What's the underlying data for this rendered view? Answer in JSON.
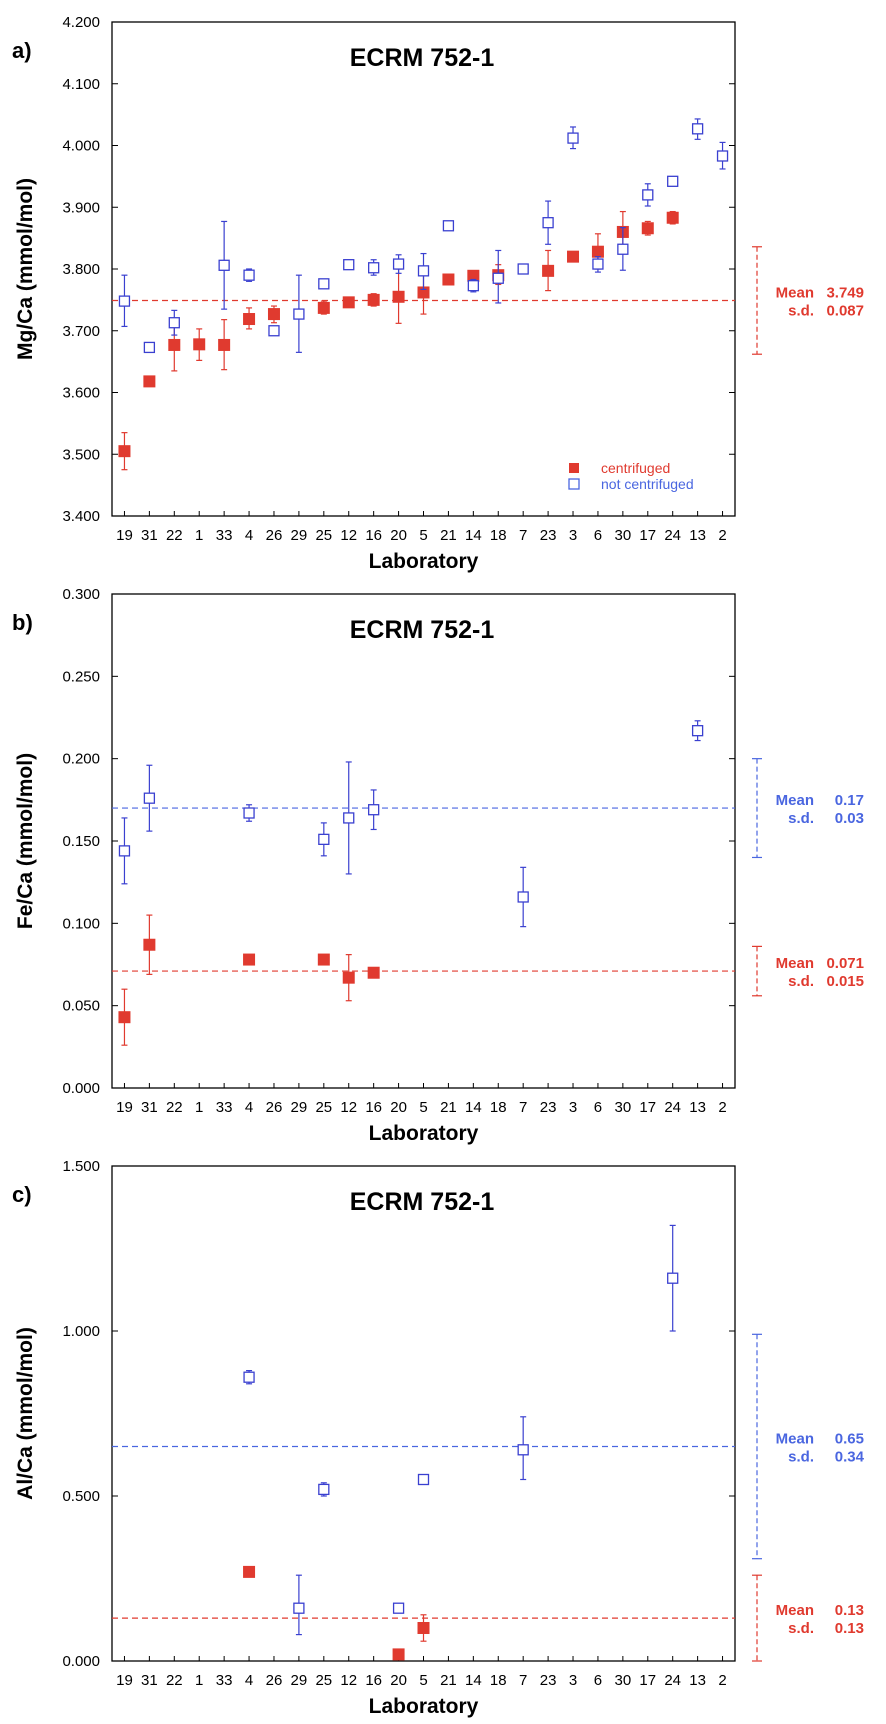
{
  "figure": {
    "x_categories": [
      "19",
      "31",
      "22",
      "1",
      "33",
      "4",
      "26",
      "29",
      "25",
      "12",
      "16",
      "20",
      "5",
      "21",
      "14",
      "18",
      "7",
      "23",
      "3",
      "6",
      "30",
      "17",
      "24",
      "13",
      "2"
    ],
    "colors": {
      "centrifuged": "#e03a2f",
      "not_centrifuged": "#3a40d0",
      "blue_stats": "#4a66e0",
      "axis": "#000000"
    }
  },
  "chart_data": [
    {
      "type": "scatter",
      "panel_label": "a)",
      "title": "ECRM 752-1",
      "xlabel": "Laboratory",
      "ylabel": "Mg/Ca (mmol/mol)",
      "ylim": [
        3.4,
        4.2
      ],
      "yticks": [
        3.4,
        3.5,
        3.6,
        3.7,
        3.8,
        3.9,
        4.0,
        4.1,
        4.2
      ],
      "ytick_labels": [
        "3.400",
        "3.500",
        "3.600",
        "3.700",
        "3.800",
        "3.900",
        "4.000",
        "4.100",
        "4.200"
      ],
      "legend": {
        "position": "bottom-right",
        "entries": [
          {
            "label": "centrifuged",
            "series": "centrifuged"
          },
          {
            "label": "not centrifuged",
            "series": "not_centrifuged"
          }
        ]
      },
      "series": [
        {
          "name": "centrifuged",
          "marker": "filled-square",
          "points": [
            {
              "x": "19",
              "y": 3.505,
              "lo": 3.475,
              "hi": 3.535
            },
            {
              "x": "31",
              "y": 3.618
            },
            {
              "x": "22",
              "y": 3.677,
              "lo": 3.635,
              "hi": 3.72
            },
            {
              "x": "1",
              "y": 3.678,
              "lo": 3.652,
              "hi": 3.703
            },
            {
              "x": "33",
              "y": 3.677,
              "lo": 3.637,
              "hi": 3.718
            },
            {
              "x": "4",
              "y": 3.719,
              "lo": 3.703,
              "hi": 3.737
            },
            {
              "x": "26",
              "y": 3.727,
              "lo": 3.713,
              "hi": 3.74
            },
            {
              "x": "25",
              "y": 3.737,
              "lo": 3.727,
              "hi": 3.748
            },
            {
              "x": "12",
              "y": 3.746,
              "lo": 3.74,
              "hi": 3.752
            },
            {
              "x": "16",
              "y": 3.75,
              "lo": 3.74,
              "hi": 3.76
            },
            {
              "x": "20",
              "y": 3.755,
              "lo": 3.712,
              "hi": 3.8
            },
            {
              "x": "5",
              "y": 3.762,
              "lo": 3.727,
              "hi": 3.797
            },
            {
              "x": "21",
              "y": 3.783
            },
            {
              "x": "14",
              "y": 3.789,
              "lo": 3.783,
              "hi": 3.795
            },
            {
              "x": "18",
              "y": 3.79,
              "lo": 3.775,
              "hi": 3.807
            },
            {
              "x": "23",
              "y": 3.797,
              "lo": 3.765,
              "hi": 3.83
            },
            {
              "x": "3",
              "y": 3.82,
              "lo": 3.813,
              "hi": 3.827
            },
            {
              "x": "6",
              "y": 3.828,
              "lo": 3.8,
              "hi": 3.857
            },
            {
              "x": "30",
              "y": 3.86,
              "lo": 3.827,
              "hi": 3.893
            },
            {
              "x": "17",
              "y": 3.866,
              "lo": 3.855,
              "hi": 3.877
            },
            {
              "x": "24",
              "y": 3.883,
              "lo": 3.873,
              "hi": 3.893
            }
          ]
        },
        {
          "name": "not centrifuged",
          "marker": "open-square",
          "points": [
            {
              "x": "19",
              "y": 3.748,
              "lo": 3.707,
              "hi": 3.79
            },
            {
              "x": "31",
              "y": 3.673,
              "lo": 3.667,
              "hi": 3.679
            },
            {
              "x": "22",
              "y": 3.713,
              "lo": 3.693,
              "hi": 3.733
            },
            {
              "x": "33",
              "y": 3.806,
              "lo": 3.735,
              "hi": 3.877
            },
            {
              "x": "4",
              "y": 3.79,
              "lo": 3.78,
              "hi": 3.8
            },
            {
              "x": "26",
              "y": 3.7,
              "lo": 3.693,
              "hi": 3.707
            },
            {
              "x": "29",
              "y": 3.727,
              "lo": 3.665,
              "hi": 3.79
            },
            {
              "x": "25",
              "y": 3.776,
              "lo": 3.77,
              "hi": 3.782
            },
            {
              "x": "12",
              "y": 3.807,
              "lo": 3.801,
              "hi": 3.813
            },
            {
              "x": "16",
              "y": 3.802,
              "lo": 3.79,
              "hi": 3.815
            },
            {
              "x": "20",
              "y": 3.808,
              "lo": 3.793,
              "hi": 3.823
            },
            {
              "x": "5",
              "y": 3.797,
              "lo": 3.767,
              "hi": 3.825
            },
            {
              "x": "21",
              "y": 3.87,
              "lo": 3.865,
              "hi": 3.875
            },
            {
              "x": "14",
              "y": 3.773,
              "lo": 3.763,
              "hi": 3.783
            },
            {
              "x": "18",
              "y": 3.785,
              "lo": 3.745,
              "hi": 3.83
            },
            {
              "x": "7",
              "y": 3.8,
              "lo": 3.793,
              "hi": 3.807
            },
            {
              "x": "23",
              "y": 3.875,
              "lo": 3.84,
              "hi": 3.91
            },
            {
              "x": "3",
              "y": 4.012,
              "lo": 3.995,
              "hi": 4.03
            },
            {
              "x": "6",
              "y": 3.808,
              "lo": 3.795,
              "hi": 3.82
            },
            {
              "x": "30",
              "y": 3.832,
              "lo": 3.798,
              "hi": 3.867
            },
            {
              "x": "17",
              "y": 3.92,
              "lo": 3.902,
              "hi": 3.938
            },
            {
              "x": "24",
              "y": 3.942,
              "lo": 3.936,
              "hi": 3.948
            },
            {
              "x": "13",
              "y": 4.027,
              "lo": 4.01,
              "hi": 4.043
            },
            {
              "x": "2",
              "y": 3.983,
              "lo": 3.962,
              "hi": 4.005
            }
          ]
        }
      ],
      "summary": [
        {
          "series": "centrifuged",
          "mean_label": "Mean",
          "mean_text": "3.749",
          "sd_label": "s.d.",
          "sd_text": "0.087",
          "mean": 3.749,
          "sd": 0.087
        }
      ]
    },
    {
      "type": "scatter",
      "panel_label": "b)",
      "title": "ECRM 752-1",
      "xlabel": "Laboratory",
      "ylabel": "Fe/Ca (mmol/mol)",
      "ylim": [
        0.0,
        0.3
      ],
      "yticks": [
        0.0,
        0.05,
        0.1,
        0.15,
        0.2,
        0.25,
        0.3
      ],
      "ytick_labels": [
        "0.000",
        "0.050",
        "0.100",
        "0.150",
        "0.200",
        "0.250",
        "0.300"
      ],
      "series": [
        {
          "name": "centrifuged",
          "marker": "filled-square",
          "points": [
            {
              "x": "19",
              "y": 0.043,
              "lo": 0.026,
              "hi": 0.06
            },
            {
              "x": "31",
              "y": 0.087,
              "lo": 0.069,
              "hi": 0.105
            },
            {
              "x": "4",
              "y": 0.078
            },
            {
              "x": "25",
              "y": 0.078
            },
            {
              "x": "12",
              "y": 0.067,
              "lo": 0.053,
              "hi": 0.081
            },
            {
              "x": "16",
              "y": 0.07
            }
          ]
        },
        {
          "name": "not centrifuged",
          "marker": "open-square",
          "points": [
            {
              "x": "19",
              "y": 0.144,
              "lo": 0.124,
              "hi": 0.164
            },
            {
              "x": "31",
              "y": 0.176,
              "lo": 0.156,
              "hi": 0.196
            },
            {
              "x": "4",
              "y": 0.167,
              "lo": 0.162,
              "hi": 0.172
            },
            {
              "x": "25",
              "y": 0.151,
              "lo": 0.141,
              "hi": 0.161
            },
            {
              "x": "12",
              "y": 0.164,
              "lo": 0.13,
              "hi": 0.198
            },
            {
              "x": "16",
              "y": 0.169,
              "lo": 0.157,
              "hi": 0.181
            },
            {
              "x": "7",
              "y": 0.116,
              "lo": 0.098,
              "hi": 0.134
            },
            {
              "x": "13",
              "y": 0.217,
              "lo": 0.211,
              "hi": 0.223
            }
          ]
        }
      ],
      "summary": [
        {
          "series": "not centrifuged",
          "mean_label": "Mean",
          "mean_text": "0.17",
          "sd_label": "s.d.",
          "sd_text": "0.03",
          "mean": 0.17,
          "sd": 0.03
        },
        {
          "series": "centrifuged",
          "mean_label": "Mean",
          "mean_text": "0.071",
          "sd_label": "s.d.",
          "sd_text": "0.015",
          "mean": 0.071,
          "sd": 0.015
        }
      ]
    },
    {
      "type": "scatter",
      "panel_label": "c)",
      "title": "ECRM 752-1",
      "xlabel": "Laboratory",
      "ylabel": "Al/Ca (mmol/mol)",
      "ylim": [
        0.0,
        1.5
      ],
      "yticks": [
        0.0,
        0.5,
        1.0,
        1.5
      ],
      "ytick_labels": [
        "0.000",
        "0.500",
        "1.000",
        "1.500"
      ],
      "series": [
        {
          "name": "centrifuged",
          "marker": "filled-square",
          "points": [
            {
              "x": "4",
              "y": 0.27
            },
            {
              "x": "20",
              "y": 0.02
            },
            {
              "x": "5",
              "y": 0.1,
              "lo": 0.06,
              "hi": 0.14
            }
          ]
        },
        {
          "name": "not centrifuged",
          "marker": "open-square",
          "points": [
            {
              "x": "4",
              "y": 0.86,
              "lo": 0.84,
              "hi": 0.88
            },
            {
              "x": "25",
              "y": 0.52,
              "lo": 0.5,
              "hi": 0.54
            },
            {
              "x": "29",
              "y": 0.16,
              "lo": 0.08,
              "hi": 0.26
            },
            {
              "x": "20",
              "y": 0.16,
              "lo": 0.15,
              "hi": 0.17
            },
            {
              "x": "5",
              "y": 0.55,
              "lo": 0.54,
              "hi": 0.56
            },
            {
              "x": "7",
              "y": 0.64,
              "lo": 0.55,
              "hi": 0.74
            },
            {
              "x": "24",
              "y": 1.16,
              "lo": 1.0,
              "hi": 1.32
            }
          ]
        }
      ],
      "summary": [
        {
          "series": "not centrifuged",
          "mean_label": "Mean",
          "mean_text": "0.65",
          "sd_label": "s.d.",
          "sd_text": "0.34",
          "mean": 0.65,
          "sd": 0.34
        },
        {
          "series": "centrifuged",
          "mean_label": "Mean",
          "mean_text": "0.13",
          "sd_label": "s.d.",
          "sd_text": "0.13",
          "mean": 0.13,
          "sd": 0.13
        }
      ]
    }
  ]
}
